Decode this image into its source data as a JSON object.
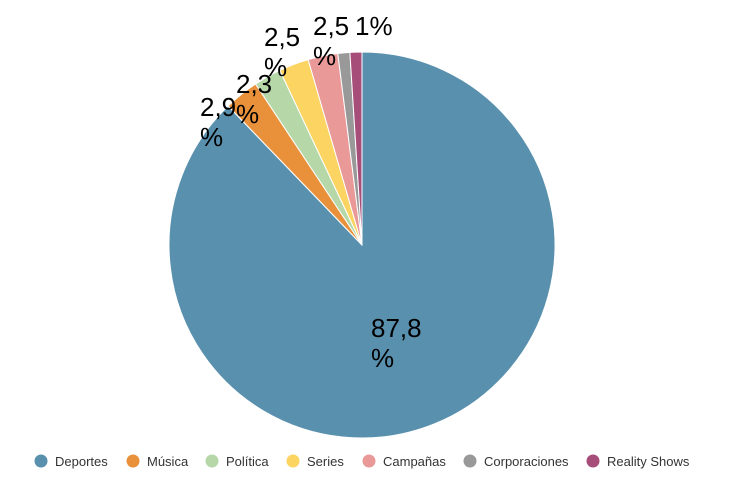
{
  "chart_data": {
    "type": "pie",
    "title": "",
    "legend_position": "bottom",
    "start_angle_deg": 0,
    "direction": "clockwise",
    "slices": [
      {
        "name": "Deportes",
        "value": 87.8,
        "label_line1": "87,8",
        "label_line2": "%",
        "color": "#5990ae"
      },
      {
        "name": "Música",
        "value": 2.9,
        "label_line1": "2,9",
        "label_line2": "%",
        "color": "#e8913a"
      },
      {
        "name": "Política",
        "value": 2.3,
        "label_line1": "2,3",
        "label_line2": "%",
        "color": "#b6d7a8"
      },
      {
        "name": "Series",
        "value": 2.5,
        "label_line1": "2,5",
        "label_line2": "%",
        "color": "#fcd462"
      },
      {
        "name": "Campañas",
        "value": 2.5,
        "label_line1": "2,5",
        "label_line2": "%",
        "color": "#ea9999"
      },
      {
        "name": "Corporaciones",
        "value": 1,
        "label_line1": "1%",
        "label_line2": "",
        "color": "#999999"
      },
      {
        "name": "Reality Shows",
        "value": 1,
        "label_line1": "",
        "label_line2": "",
        "color": "#a64d79"
      }
    ]
  }
}
